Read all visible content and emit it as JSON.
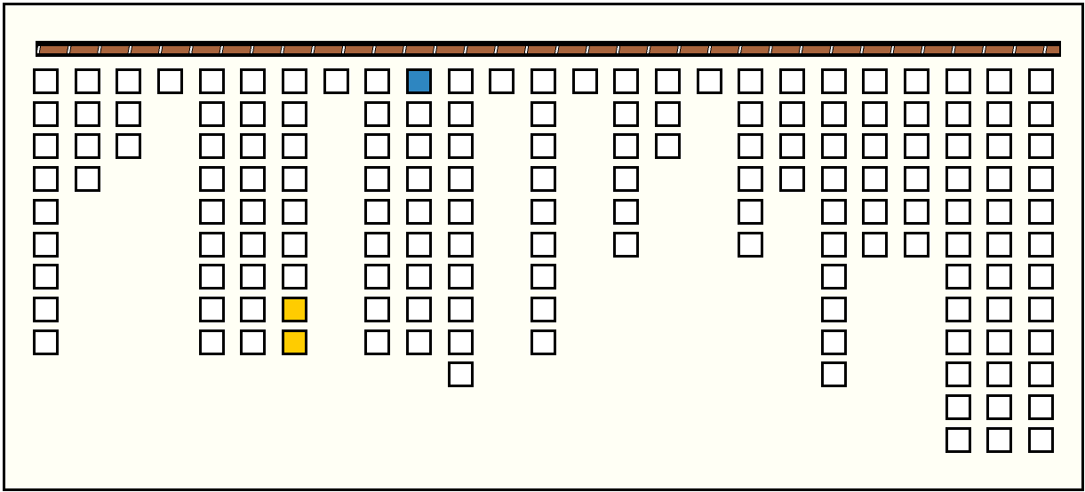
{
  "game": {
    "colors": {
      "empty": "#ffffff",
      "selected": "#2e86c1",
      "highlight": "#ffcc00",
      "bar": "#a8643c",
      "background": "#fffff5"
    },
    "columns": [
      {
        "count": 9
      },
      {
        "count": 4
      },
      {
        "count": 3
      },
      {
        "count": 1
      },
      {
        "count": 9
      },
      {
        "count": 9
      },
      {
        "count": 9,
        "special": {
          "7": "highlight",
          "8": "highlight"
        }
      },
      {
        "count": 1
      },
      {
        "count": 9
      },
      {
        "count": 9,
        "special": {
          "0": "selected"
        }
      },
      {
        "count": 10
      },
      {
        "count": 1
      },
      {
        "count": 9
      },
      {
        "count": 1
      },
      {
        "count": 6
      },
      {
        "count": 3
      },
      {
        "count": 1
      },
      {
        "count": 6
      },
      {
        "count": 4
      },
      {
        "count": 10
      },
      {
        "count": 6
      },
      {
        "count": 6
      },
      {
        "count": 12
      },
      {
        "count": 12
      },
      {
        "count": 12
      }
    ]
  }
}
